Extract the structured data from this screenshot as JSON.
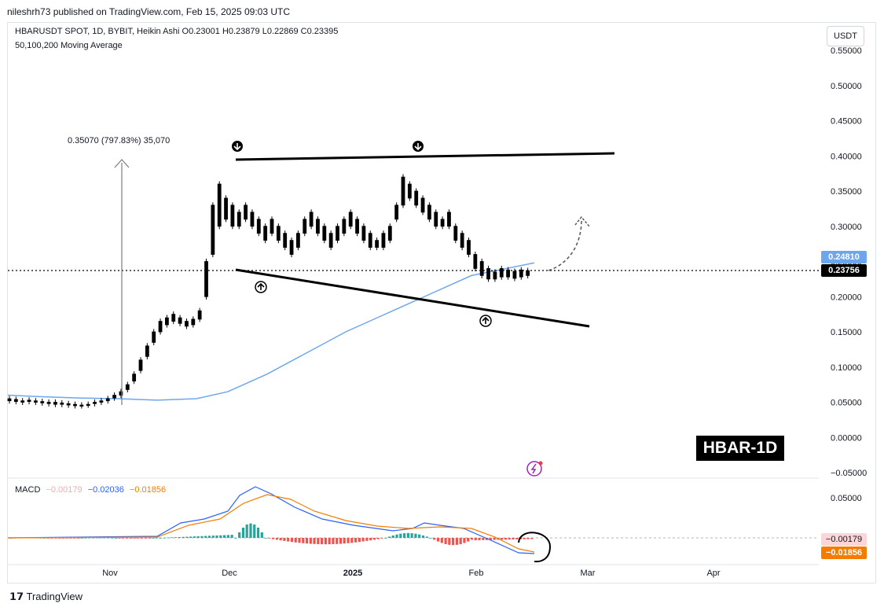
{
  "header": {
    "published": "nileshrh73 published on TradingView.com, Feb 15, 2025 09:03 UTC"
  },
  "legend": {
    "symbol_line": "HBARUSDT SPOT, 1D, BYBIT, Heikin Ashi",
    "o": "O0.23001",
    "h": "H0.23879",
    "l": "L0.22869",
    "c": "C0.23395",
    "ma_line": "50,100,200 Moving Average"
  },
  "currency_button": "USDT",
  "measure_label": "0.35070 (797.83%) 35,070",
  "badge": "HBAR-1D",
  "macd": {
    "label": "MACD",
    "hist": "−0.00179",
    "macd": "−0.02036",
    "signal": "−0.01856"
  },
  "price_tags": {
    "ma": "0.24810",
    "last": "0.23756",
    "macd_hist": "−0.00179",
    "macd_signal": "−0.01856"
  },
  "footer": {
    "brand": "TradingView"
  },
  "colors": {
    "ma": "#6ea6ee",
    "up": "#000000",
    "down": "#000000",
    "macd": "#2962ff",
    "signal": "#f57c00",
    "hist_pos": "#26a69a",
    "hist_neg": "#ef5350"
  },
  "chart_data": {
    "type": "line",
    "price_axis": [
      "0.55000",
      "0.50000",
      "0.45000",
      "0.40000",
      "0.35000",
      "0.30000",
      "0.25000",
      "0.20000",
      "0.15000",
      "0.10000",
      "0.05000",
      "0.00000",
      "−0.05000"
    ],
    "macd_axis": [
      "0.05000",
      "0.00000"
    ],
    "time_axis": [
      "Nov",
      "Dec",
      "2025",
      "Feb",
      "Mar",
      "Apr"
    ],
    "ma_200_approx": [
      0.06,
      0.058,
      0.056,
      0.055,
      0.053,
      0.055,
      0.065,
      0.09,
      0.12,
      0.15,
      0.175,
      0.2,
      0.23,
      0.248
    ],
    "last_price": 0.23756,
    "upper_trendline": [
      0.395,
      0.403
    ],
    "lower_trendline": [
      0.238,
      0.158
    ]
  }
}
